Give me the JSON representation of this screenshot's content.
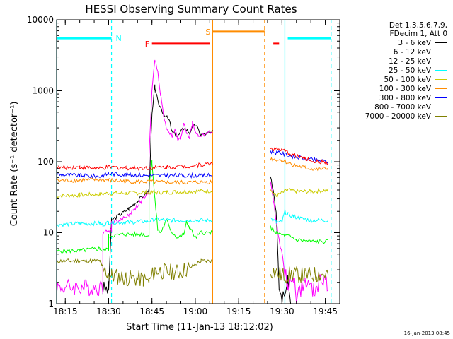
{
  "chart_data": {
    "type": "line",
    "title": "HESSI Observing Summary Count Rates",
    "xlabel": "Start Time (11-Jan-13 18:12:02)",
    "ylabel": "Count Rate (s⁻¹ detector⁻¹)",
    "x_scale": "time",
    "y_scale": "log",
    "xlim": [
      "18:12",
      "19:50"
    ],
    "ylim": [
      1,
      10000
    ],
    "x_ticks": [
      "18:15",
      "18:30",
      "18:45",
      "19:00",
      "19:15",
      "19:30",
      "19:45"
    ],
    "y_ticks": [
      "1",
      "10",
      "100",
      "1000",
      "10000"
    ],
    "legend_header": [
      "Det 1,3,5,6,7,9,",
      "FDecim 1, Att 0"
    ],
    "footer_date": "16-Jan-2013 08:45",
    "series": [
      {
        "name": "3 - 6 keV",
        "color": "#000000",
        "points": [
          [
            "18:28",
            1.6
          ],
          [
            "18:30",
            1.6
          ],
          [
            "18:31",
            15
          ],
          [
            "18:34",
            18
          ],
          [
            "18:37",
            22
          ],
          [
            "18:40",
            28
          ],
          [
            "18:43",
            36
          ],
          [
            "18:44",
            40
          ],
          [
            "18:45",
            450
          ],
          [
            "18:46",
            1150
          ],
          [
            "18:47",
            700
          ],
          [
            "18:49",
            480
          ],
          [
            "18:51",
            380
          ],
          [
            "18:52",
            260
          ],
          [
            "18:54",
            230
          ],
          [
            "18:56",
            300
          ],
          [
            "18:58",
            260
          ],
          [
            "19:00",
            330
          ],
          [
            "19:02",
            240
          ],
          [
            "19:04",
            250
          ],
          [
            "19:06",
            260
          ],
          [
            "19:06",
            null
          ],
          [
            "19:26",
            null
          ],
          [
            "19:26",
            60
          ],
          [
            "19:27",
            40
          ],
          [
            "19:28",
            20
          ],
          [
            "19:29",
            2
          ],
          [
            "19:30",
            1.2
          ],
          [
            "19:32",
            2.5
          ],
          [
            "19:33",
            1
          ]
        ]
      },
      {
        "name": "6 - 12 keV",
        "color": "#ff00ff",
        "points": [
          [
            "18:12",
            1.7
          ],
          [
            "18:28",
            1.7
          ],
          [
            "18:28",
            10
          ],
          [
            "18:31",
            11
          ],
          [
            "18:31",
            14
          ],
          [
            "18:34",
            15
          ],
          [
            "18:37",
            18
          ],
          [
            "18:40",
            24
          ],
          [
            "18:42",
            30
          ],
          [
            "18:44",
            36
          ],
          [
            "18:44",
            120
          ],
          [
            "18:45",
            1000
          ],
          [
            "18:46",
            2800
          ],
          [
            "18:47",
            1800
          ],
          [
            "18:48",
            900
          ],
          [
            "18:49",
            450
          ],
          [
            "18:50",
            300
          ],
          [
            "18:52",
            230
          ],
          [
            "18:53",
            280
          ],
          [
            "18:54",
            200
          ],
          [
            "18:55",
            210
          ],
          [
            "18:56",
            360
          ],
          [
            "18:57",
            260
          ],
          [
            "18:58",
            220
          ],
          [
            "18:59",
            350
          ],
          [
            "19:00",
            270
          ],
          [
            "19:01",
            230
          ],
          [
            "19:03",
            240
          ],
          [
            "19:05",
            260
          ],
          [
            "19:06",
            270
          ],
          [
            "19:06",
            null
          ],
          [
            "19:26",
            null
          ],
          [
            "19:26",
            50
          ],
          [
            "19:27",
            30
          ],
          [
            "19:28",
            14
          ],
          [
            "19:29",
            8
          ],
          [
            "19:31",
            3
          ],
          [
            "19:32",
            1.5
          ],
          [
            "19:34",
            2.5
          ],
          [
            "19:35",
            1.2
          ],
          [
            "19:38",
            2
          ],
          [
            "19:41",
            1.5
          ],
          [
            "19:45",
            2.5
          ],
          [
            "19:46",
            1.3
          ]
        ]
      },
      {
        "name": "12 - 25 keV",
        "color": "#00ff00",
        "points": [
          [
            "18:12",
            5.5
          ],
          [
            "18:20",
            5.6
          ],
          [
            "18:27",
            6
          ],
          [
            "18:28",
            5.5
          ],
          [
            "18:30",
            6
          ],
          [
            "18:30",
            9
          ],
          [
            "18:36",
            9.5
          ],
          [
            "18:42",
            9.5
          ],
          [
            "18:44",
            9
          ],
          [
            "18:44",
            50
          ],
          [
            "18:45",
            100
          ],
          [
            "18:46",
            30
          ],
          [
            "18:47",
            11
          ],
          [
            "18:48",
            10
          ],
          [
            "18:50",
            15
          ],
          [
            "18:52",
            10
          ],
          [
            "18:54",
            8.5
          ],
          [
            "18:56",
            9.5
          ],
          [
            "18:57",
            14
          ],
          [
            "18:58",
            12
          ],
          [
            "19:00",
            8.5
          ],
          [
            "19:02",
            10
          ],
          [
            "19:04",
            10
          ],
          [
            "19:06",
            10
          ],
          [
            "19:06",
            null
          ],
          [
            "19:26",
            null
          ],
          [
            "19:26",
            12
          ],
          [
            "19:28",
            10
          ],
          [
            "19:31",
            9
          ],
          [
            "19:32",
            9
          ],
          [
            "19:35",
            8
          ],
          [
            "19:40",
            7.5
          ],
          [
            "19:46",
            7.5
          ]
        ]
      },
      {
        "name": "25 - 50 keV",
        "color": "#00ffff",
        "points": [
          [
            "18:12",
            13
          ],
          [
            "18:20",
            13.5
          ],
          [
            "18:27",
            13.5
          ],
          [
            "18:28",
            13
          ],
          [
            "18:30",
            14
          ],
          [
            "18:36",
            14
          ],
          [
            "18:44",
            14.5
          ],
          [
            "18:46",
            15.5
          ],
          [
            "18:50",
            15
          ],
          [
            "18:56",
            15
          ],
          [
            "19:06",
            15
          ],
          [
            "19:06",
            null
          ],
          [
            "19:26",
            null
          ],
          [
            "19:26",
            16
          ],
          [
            "19:28",
            14
          ],
          [
            "19:30",
            14
          ],
          [
            "19:31",
            20
          ],
          [
            "19:32",
            18
          ],
          [
            "19:34",
            17
          ],
          [
            "19:36",
            16
          ],
          [
            "19:40",
            15
          ],
          [
            "19:46",
            15
          ]
        ]
      },
      {
        "name": "50 - 100 keV",
        "color": "#cccc00",
        "points": [
          [
            "18:12",
            33
          ],
          [
            "18:20",
            34
          ],
          [
            "18:27",
            35
          ],
          [
            "18:30",
            36
          ],
          [
            "18:36",
            36
          ],
          [
            "18:44",
            37
          ],
          [
            "18:50",
            37
          ],
          [
            "18:56",
            38
          ],
          [
            "19:06",
            39
          ],
          [
            "19:06",
            null
          ],
          [
            "19:26",
            null
          ],
          [
            "19:26",
            40
          ],
          [
            "19:28",
            33
          ],
          [
            "19:32",
            40
          ],
          [
            "19:36",
            38
          ],
          [
            "19:40",
            38
          ],
          [
            "19:46",
            40
          ]
        ]
      },
      {
        "name": "100 - 300 keV",
        "color": "#ff8c00",
        "points": [
          [
            "18:12",
            54
          ],
          [
            "18:20",
            55
          ],
          [
            "18:27",
            56
          ],
          [
            "18:30",
            55
          ],
          [
            "18:36",
            53
          ],
          [
            "18:44",
            52
          ],
          [
            "18:50",
            51
          ],
          [
            "18:56",
            51
          ],
          [
            "19:06",
            52
          ],
          [
            "19:06",
            null
          ],
          [
            "19:26",
            null
          ],
          [
            "19:26",
            110
          ],
          [
            "19:30",
            105
          ],
          [
            "19:34",
            90
          ],
          [
            "19:38",
            82
          ],
          [
            "19:42",
            78
          ],
          [
            "19:46",
            80
          ]
        ]
      },
      {
        "name": "300 - 800 keV",
        "color": "#0000ff",
        "points": [
          [
            "18:12",
            66
          ],
          [
            "18:20",
            64
          ],
          [
            "18:27",
            62
          ],
          [
            "18:30",
            68
          ],
          [
            "18:36",
            66
          ],
          [
            "18:44",
            64
          ],
          [
            "18:50",
            64
          ],
          [
            "18:56",
            64
          ],
          [
            "19:06",
            64
          ],
          [
            "19:06",
            null
          ],
          [
            "19:26",
            null
          ],
          [
            "19:26",
            140
          ],
          [
            "19:30",
            130
          ],
          [
            "19:34",
            118
          ],
          [
            "19:38",
            110
          ],
          [
            "19:42",
            105
          ],
          [
            "19:46",
            100
          ]
        ]
      },
      {
        "name": "800 - 7000 keV",
        "color": "#ff0000",
        "points": [
          [
            "18:12",
            82
          ],
          [
            "18:20",
            84
          ],
          [
            "18:27",
            80
          ],
          [
            "18:30",
            84
          ],
          [
            "18:36",
            82
          ],
          [
            "18:44",
            82
          ],
          [
            "18:50",
            84
          ],
          [
            "18:56",
            86
          ],
          [
            "19:02",
            90
          ],
          [
            "19:06",
            96
          ],
          [
            "19:06",
            null
          ],
          [
            "19:26",
            null
          ],
          [
            "19:26",
            155
          ],
          [
            "19:30",
            145
          ],
          [
            "19:34",
            125
          ],
          [
            "19:38",
            110
          ],
          [
            "19:42",
            100
          ],
          [
            "19:46",
            98
          ]
        ]
      },
      {
        "name": "7000 - 20000 keV",
        "color": "#808000",
        "points": [
          [
            "18:12",
            4
          ],
          [
            "18:20",
            4
          ],
          [
            "18:27",
            4
          ],
          [
            "18:28",
            3
          ],
          [
            "18:31",
            2.5
          ],
          [
            "18:36",
            2.3
          ],
          [
            "18:42",
            2.2
          ],
          [
            "18:44",
            2
          ],
          [
            "18:46",
            3
          ],
          [
            "18:50",
            2.8
          ],
          [
            "18:54",
            2.8
          ],
          [
            "18:58",
            3.2
          ],
          [
            "19:02",
            4
          ],
          [
            "19:06",
            4
          ],
          [
            "19:06",
            null
          ],
          [
            "19:26",
            null
          ],
          [
            "19:26",
            3
          ],
          [
            "19:30",
            2.5
          ],
          [
            "19:34",
            2.6
          ],
          [
            "19:38",
            2.5
          ],
          [
            "19:42",
            2.6
          ],
          [
            "19:46",
            2.6
          ]
        ]
      }
    ],
    "flag_bars": [
      {
        "label": "N",
        "color": "#00ffff",
        "y": 5500,
        "from": "18:12",
        "to": "18:31"
      },
      {
        "label": "",
        "color": "#00ffff",
        "y": 5500,
        "from": "19:32",
        "to": "19:47"
      },
      {
        "label": "F",
        "color": "#ff0000",
        "y": 4600,
        "from": "18:45",
        "to": "19:05"
      },
      {
        "label": "",
        "color": "#ff0000",
        "y": 4600,
        "from": "19:27",
        "to": "19:29"
      },
      {
        "label": "S",
        "color": "#ff8c00",
        "y": 6800,
        "from": "19:06",
        "to": "19:24"
      }
    ],
    "vlines": [
      {
        "t": "18:12",
        "color": "#00ffff",
        "dashed": false
      },
      {
        "t": "18:31",
        "color": "#00ffff",
        "dashed": true
      },
      {
        "t": "19:06",
        "color": "#ff8c00",
        "dashed": false
      },
      {
        "t": "19:24",
        "color": "#ff8c00",
        "dashed": true
      },
      {
        "t": "19:31",
        "color": "#00ffff",
        "dashed": false
      },
      {
        "t": "19:47",
        "color": "#00ffff",
        "dashed": true
      }
    ]
  }
}
